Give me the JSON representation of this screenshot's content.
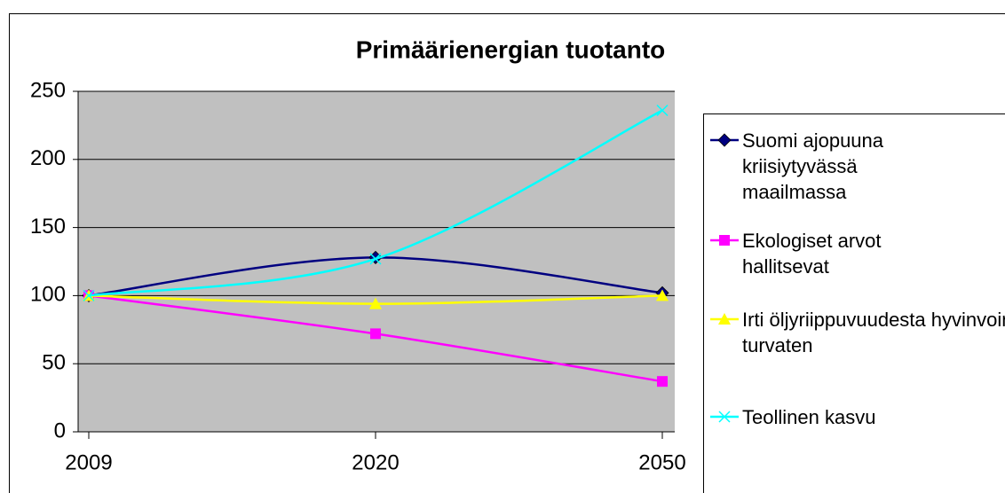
{
  "chart_data": {
    "type": "line",
    "title": "Primäärienergian tuotanto",
    "categories": [
      "2009",
      "2020",
      "2050"
    ],
    "series": [
      {
        "name": "Suomi ajopuuna kriisiytyvässä maailmassa",
        "color": "#000080",
        "marker": "diamond",
        "values": [
          100,
          128,
          102
        ]
      },
      {
        "name": "Ekologiset arvot hallitsevat",
        "color": "#ff00ff",
        "marker": "square",
        "values": [
          100,
          72,
          37
        ]
      },
      {
        "name": "Irti öljyriippuvuudesta hyvinvointi turvaten",
        "color": "#ffff00",
        "marker": "triangle",
        "values": [
          100,
          94,
          100
        ]
      },
      {
        "name": "Teollinen kasvu",
        "color": "#00ffff",
        "marker": "x",
        "values": [
          100,
          127,
          236
        ]
      }
    ],
    "ylim": [
      0,
      250
    ],
    "yticks": [
      0,
      50,
      100,
      150,
      200,
      250
    ],
    "grid": true,
    "smooth": true,
    "legend": "right",
    "plot_background": "#c0c0c0"
  }
}
